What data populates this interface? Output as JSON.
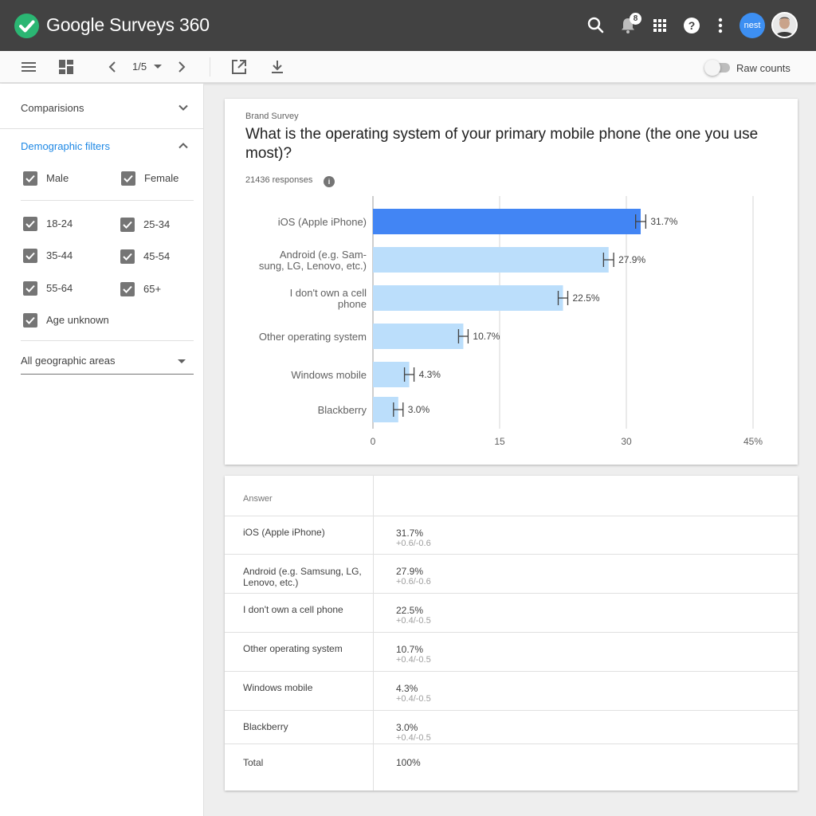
{
  "app": {
    "brand": "Google",
    "product": "Surveys 360",
    "notifications_count": "8",
    "account_label": "nest"
  },
  "toolbar": {
    "page_indicator": "1/5",
    "raw_counts_label": "Raw counts",
    "raw_counts_on": false
  },
  "sidebar": {
    "comparisons_label": "Comparisions",
    "demographic_label": "Demographic filters",
    "gender": [
      {
        "label": "Male",
        "checked": true
      },
      {
        "label": "Female",
        "checked": true
      }
    ],
    "ages": [
      {
        "label": "18-24",
        "checked": true
      },
      {
        "label": "25-34",
        "checked": true
      },
      {
        "label": "35-44",
        "checked": true
      },
      {
        "label": "45-54",
        "checked": true
      },
      {
        "label": "55-64",
        "checked": true
      },
      {
        "label": "65+",
        "checked": true
      },
      {
        "label": "Age unknown",
        "checked": true
      }
    ],
    "geo_select": "All geographic areas"
  },
  "survey": {
    "name": "Brand Survey",
    "question": "What is the operating system of your primary mobile phone (the one you use most)?",
    "responses": "21436 responses"
  },
  "colors": {
    "highlight_bar": "#4285f4",
    "bar": "#bbdefb",
    "appbar": "#424242",
    "accent": "#1e88e5"
  },
  "chart_data": {
    "type": "bar",
    "orientation": "horizontal",
    "categories": [
      [
        "iOS (Apple iPhone)"
      ],
      [
        "Android (e.g. Sam-",
        "sung, LG, Lenovo, etc.)"
      ],
      [
        "I don't own a cell",
        "phone"
      ],
      [
        "Other operating system"
      ],
      [
        "Windows mobile"
      ],
      [
        "Blackberry"
      ]
    ],
    "values": [
      31.7,
      27.9,
      22.5,
      10.7,
      4.3,
      3.0
    ],
    "error_plus": [
      0.6,
      0.6,
      0.4,
      0.4,
      0.4,
      0.4
    ],
    "error_minus": [
      0.6,
      0.6,
      0.5,
      0.5,
      0.5,
      0.5
    ],
    "value_labels": [
      "31.7%",
      "27.9%",
      "22.5%",
      "10.7%",
      "4.3%",
      "3.0%"
    ],
    "xlim": [
      0,
      45
    ],
    "ticks": [
      0,
      15,
      30,
      45
    ],
    "tick_labels": [
      "0",
      "15",
      "30",
      "45%"
    ],
    "highlight_index": 0,
    "grid": true
  },
  "table": {
    "header": "Answer",
    "rows": [
      {
        "answer": "iOS (Apple iPhone)",
        "value": "31.7%",
        "error": "+0.6/-0.6"
      },
      {
        "answer": "Android (e.g. Samsung, LG, Lenovo, etc.)",
        "value": "27.9%",
        "error": "+0.6/-0.6"
      },
      {
        "answer": "I don't own a cell phone",
        "value": "22.5%",
        "error": "+0.4/-0.5"
      },
      {
        "answer": "Other operating system",
        "value": "10.7%",
        "error": "+0.4/-0.5"
      },
      {
        "answer": "Windows mobile",
        "value": "4.3%",
        "error": "+0.4/-0.5"
      },
      {
        "answer": "Blackberry",
        "value": "3.0%",
        "error": "+0.4/-0.5"
      }
    ],
    "total_label": "Total",
    "total_value": "100%"
  }
}
